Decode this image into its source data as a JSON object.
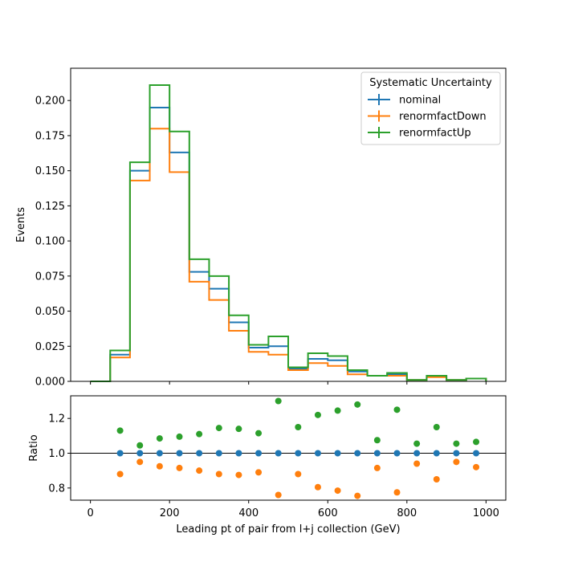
{
  "chart_data": [
    {
      "type": "step",
      "panel": "main",
      "xlabel": "",
      "ylabel": "Events",
      "xlim": [
        -50,
        1050
      ],
      "ylim": [
        0,
        0.223
      ],
      "yticks": [
        "0.000",
        "0.025",
        "0.050",
        "0.075",
        "0.100",
        "0.125",
        "0.150",
        "0.175",
        "0.200"
      ],
      "bin_edges": [
        0,
        50,
        100,
        150,
        200,
        250,
        300,
        350,
        400,
        450,
        500,
        550,
        600,
        650,
        700,
        750,
        800,
        850,
        900,
        950,
        1000
      ],
      "legend": {
        "title": "Systematic Uncertainty",
        "placement": "top-right"
      },
      "series": [
        {
          "name": "nominal",
          "color": "#1f77b4",
          "values": [
            0.0,
            0.019,
            0.15,
            0.195,
            0.163,
            0.078,
            0.066,
            0.042,
            0.024,
            0.025,
            0.009,
            0.016,
            0.015,
            0.007,
            0.004,
            0.005,
            0.001,
            0.004,
            0.001,
            0.002
          ]
        },
        {
          "name": "renormfactDown",
          "color": "#ff7f0e",
          "values": [
            0.0,
            0.017,
            0.143,
            0.18,
            0.149,
            0.071,
            0.058,
            0.036,
            0.021,
            0.019,
            0.008,
            0.013,
            0.011,
            0.005,
            0.004,
            0.004,
            0.001,
            0.003,
            0.001,
            0.002
          ]
        },
        {
          "name": "renormfactUp",
          "color": "#2ca02c",
          "values": [
            0.0,
            0.022,
            0.156,
            0.211,
            0.178,
            0.087,
            0.075,
            0.047,
            0.026,
            0.032,
            0.01,
            0.02,
            0.018,
            0.008,
            0.004,
            0.006,
            0.001,
            0.004,
            0.001,
            0.002
          ]
        }
      ]
    },
    {
      "type": "scatter",
      "panel": "ratio",
      "xlabel": "Leading pt of pair from l+j collection (GeV)",
      "ylabel": "Ratio",
      "xlim": [
        -50,
        1050
      ],
      "ylim": [
        0.73,
        1.33
      ],
      "xticks": [
        "0",
        "200",
        "400",
        "600",
        "800",
        "1000"
      ],
      "yticks": [
        "0.8",
        "1.0",
        "1.2"
      ],
      "reference_line": 1.0,
      "x": [
        75,
        125,
        175,
        225,
        275,
        325,
        375,
        425,
        475,
        525,
        575,
        625,
        675,
        725,
        775,
        825,
        875,
        925,
        975
      ],
      "series": [
        {
          "name": "nominal",
          "color": "#1f77b4",
          "values": [
            1.0,
            1.0,
            1.0,
            1.0,
            1.0,
            1.0,
            1.0,
            1.0,
            1.0,
            1.0,
            1.0,
            1.0,
            1.0,
            1.0,
            1.0,
            1.0,
            1.0,
            1.0,
            1.0
          ]
        },
        {
          "name": "renormfactDown",
          "color": "#ff7f0e",
          "values": [
            0.88,
            0.95,
            0.925,
            0.915,
            0.9,
            0.88,
            0.875,
            0.89,
            0.76,
            0.88,
            0.805,
            0.785,
            0.755,
            0.915,
            0.775,
            0.94,
            0.85,
            0.95,
            0.92
          ]
        },
        {
          "name": "renormfactUp",
          "color": "#2ca02c",
          "values": [
            1.13,
            1.045,
            1.085,
            1.095,
            1.11,
            1.145,
            1.14,
            1.115,
            1.3,
            1.15,
            1.22,
            1.245,
            1.28,
            1.075,
            1.25,
            1.055,
            1.15,
            1.055,
            1.065
          ]
        }
      ]
    }
  ]
}
